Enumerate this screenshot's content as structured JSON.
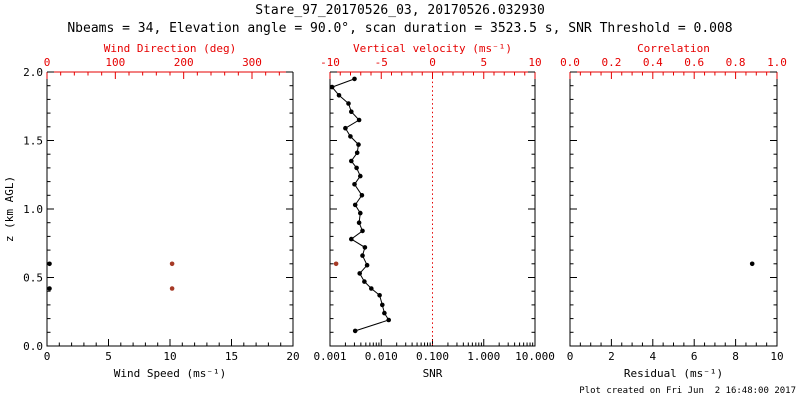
{
  "colors": {
    "ink": "#000000",
    "axis_red": "#e60000",
    "marker_red": "#a63a26",
    "refline_red": "#e60000",
    "background": "#ffffff"
  },
  "chart_data": {
    "type": "scatter",
    "title": "Stare_97_20170526_03, 20170526.032930",
    "subtitle": "Nbeams = 34, Elevation angle = 90.0°, scan duration = 3523.5 s, SNR Threshold = 0.008",
    "footer": "Plot created on Fri Jun  2 16:48:00 2017",
    "yaxis": {
      "label": "z (km AGL)",
      "range": [
        0,
        2
      ],
      "major_values": [
        0,
        0.5,
        1,
        1.5,
        2
      ],
      "major_labels": [
        "0.0",
        "0.5",
        "1.0",
        "1.5",
        "2.0"
      ],
      "minor_step": 0.1
    },
    "panels": [
      {
        "id": "wind",
        "show_y_labels": true,
        "bottom": {
          "label": "Wind Speed (ms⁻¹)",
          "scale": "linear",
          "range": [
            0,
            20
          ],
          "major_values": [
            0,
            5,
            10,
            15,
            20
          ],
          "major_labels": [
            "0",
            "5",
            "10",
            "15",
            "20"
          ],
          "minor_step": 1
        },
        "top": {
          "label": "Wind Direction (deg)",
          "scale": "linear",
          "range": [
            0,
            360
          ],
          "major_values": [
            0,
            100,
            200,
            300
          ],
          "major_labels": [
            "0",
            "100",
            "200",
            "300"
          ],
          "minor_step": 20
        },
        "series": [
          {
            "name": "wind-speed-points",
            "axis": "bottom",
            "color_key": "ink",
            "line": false,
            "points": [
              [
                0.2,
                0.6
              ],
              [
                0.2,
                0.42
              ]
            ]
          },
          {
            "name": "wind-direction-points",
            "axis": "top",
            "color_key": "marker_red",
            "line": false,
            "points": [
              [
                183,
                0.6
              ],
              [
                183,
                0.42
              ]
            ]
          }
        ]
      },
      {
        "id": "snr",
        "show_y_labels": false,
        "bottom": {
          "label": "SNR",
          "scale": "log",
          "range": [
            0.001,
            10
          ],
          "major_values": [
            0.001,
            0.01,
            0.1,
            1,
            10
          ],
          "major_labels": [
            "0.001",
            "0.010",
            "0.100",
            "1.000",
            "10.000"
          ]
        },
        "top": {
          "label": "Vertical velocity (ms⁻¹)",
          "scale": "linear",
          "range": [
            -10,
            10
          ],
          "major_values": [
            -10,
            -5,
            0,
            5,
            10
          ],
          "major_labels": [
            "-10",
            "-5",
            "0",
            "5",
            "10"
          ],
          "minor_step": 1
        },
        "refline": {
          "axis": "top",
          "value": 0,
          "style": "dotted"
        },
        "series": [
          {
            "name": "snr-profile",
            "axis": "bottom",
            "color_key": "ink",
            "line": true,
            "points": [
              [
                0.003,
                1.95
              ],
              [
                0.0011,
                1.89
              ],
              [
                0.0015,
                1.83
              ],
              [
                0.0023,
                1.77
              ],
              [
                0.0026,
                1.71
              ],
              [
                0.0037,
                1.65
              ],
              [
                0.002,
                1.59
              ],
              [
                0.0025,
                1.53
              ],
              [
                0.0036,
                1.47
              ],
              [
                0.0034,
                1.41
              ],
              [
                0.0026,
                1.35
              ],
              [
                0.0033,
                1.3
              ],
              [
                0.0039,
                1.24
              ],
              [
                0.003,
                1.18
              ],
              [
                0.0042,
                1.1
              ],
              [
                0.0031,
                1.03
              ],
              [
                0.0039,
                0.97
              ],
              [
                0.0037,
                0.9
              ],
              [
                0.0043,
                0.84
              ],
              [
                0.0026,
                0.78
              ],
              [
                0.0048,
                0.72
              ],
              [
                0.0043,
                0.66
              ],
              [
                0.0053,
                0.59
              ],
              [
                0.0038,
                0.53
              ],
              [
                0.0047,
                0.47
              ],
              [
                0.0064,
                0.42
              ],
              [
                0.0093,
                0.37
              ],
              [
                0.0105,
                0.3
              ],
              [
                0.0115,
                0.24
              ],
              [
                0.014,
                0.19
              ],
              [
                0.0031,
                0.11
              ]
            ]
          },
          {
            "name": "vertical-velocity-points",
            "axis": "top",
            "color_key": "marker_red",
            "line": false,
            "points": [
              [
                -9.4,
                0.6
              ]
            ]
          }
        ]
      },
      {
        "id": "residual",
        "show_y_labels": false,
        "bottom": {
          "label": "Residual (ms⁻¹)",
          "scale": "linear",
          "range": [
            0,
            10
          ],
          "major_values": [
            0,
            2,
            4,
            6,
            8,
            10
          ],
          "major_labels": [
            "0",
            "2",
            "4",
            "6",
            "8",
            "10"
          ],
          "minor_step": 0.5
        },
        "top": {
          "label": "Correlation",
          "scale": "linear",
          "range": [
            0,
            1
          ],
          "major_values": [
            0,
            0.2,
            0.4,
            0.6,
            0.8,
            1
          ],
          "major_labels": [
            "0.0",
            "0.2",
            "0.4",
            "0.6",
            "0.8",
            "1.0"
          ],
          "minor_step": 0.05
        },
        "series": [
          {
            "name": "residual-points",
            "axis": "bottom",
            "color_key": "ink",
            "line": false,
            "points": [
              [
                8.8,
                0.6
              ]
            ]
          }
        ]
      }
    ]
  }
}
